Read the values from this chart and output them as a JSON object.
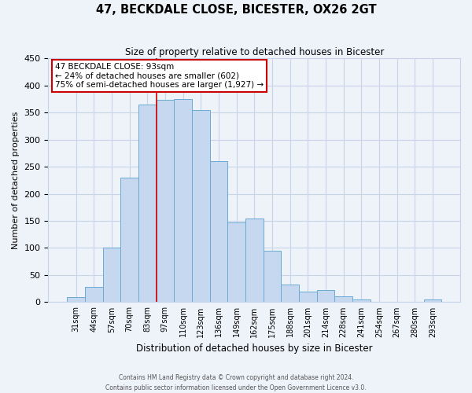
{
  "title": "47, BECKDALE CLOSE, BICESTER, OX26 2GT",
  "subtitle": "Size of property relative to detached houses in Bicester",
  "xlabel": "Distribution of detached houses by size in Bicester",
  "ylabel": "Number of detached properties",
  "categories": [
    "31sqm",
    "44sqm",
    "57sqm",
    "70sqm",
    "83sqm",
    "97sqm",
    "110sqm",
    "123sqm",
    "136sqm",
    "149sqm",
    "162sqm",
    "175sqm",
    "188sqm",
    "201sqm",
    "214sqm",
    "228sqm",
    "241sqm",
    "254sqm",
    "267sqm",
    "280sqm",
    "293sqm"
  ],
  "bar_values": [
    10,
    28,
    100,
    230,
    365,
    373,
    375,
    355,
    260,
    147,
    154,
    95,
    33,
    20,
    22,
    11,
    5,
    0,
    0,
    0,
    5
  ],
  "bar_color": "#c5d8f0",
  "bar_edge_color": "#6aaad4",
  "ylim": [
    0,
    450
  ],
  "yticks": [
    0,
    50,
    100,
    150,
    200,
    250,
    300,
    350,
    400,
    450
  ],
  "grid_color": "#c8d4e8",
  "bg_color": "#eef2f9",
  "red_line_index": 5,
  "annotation_title": "47 BECKDALE CLOSE: 93sqm",
  "annotation_line1": "← 24% of detached houses are smaller (602)",
  "annotation_line2": "75% of semi-detached houses are larger (1,927) →",
  "annotation_box_color": "#ffffff",
  "annotation_box_edge": "#cc0000",
  "red_line_color": "#cc0000",
  "footer_line1": "Contains HM Land Registry data © Crown copyright and database right 2024.",
  "footer_line2": "Contains public sector information licensed under the Open Government Licence v3.0."
}
